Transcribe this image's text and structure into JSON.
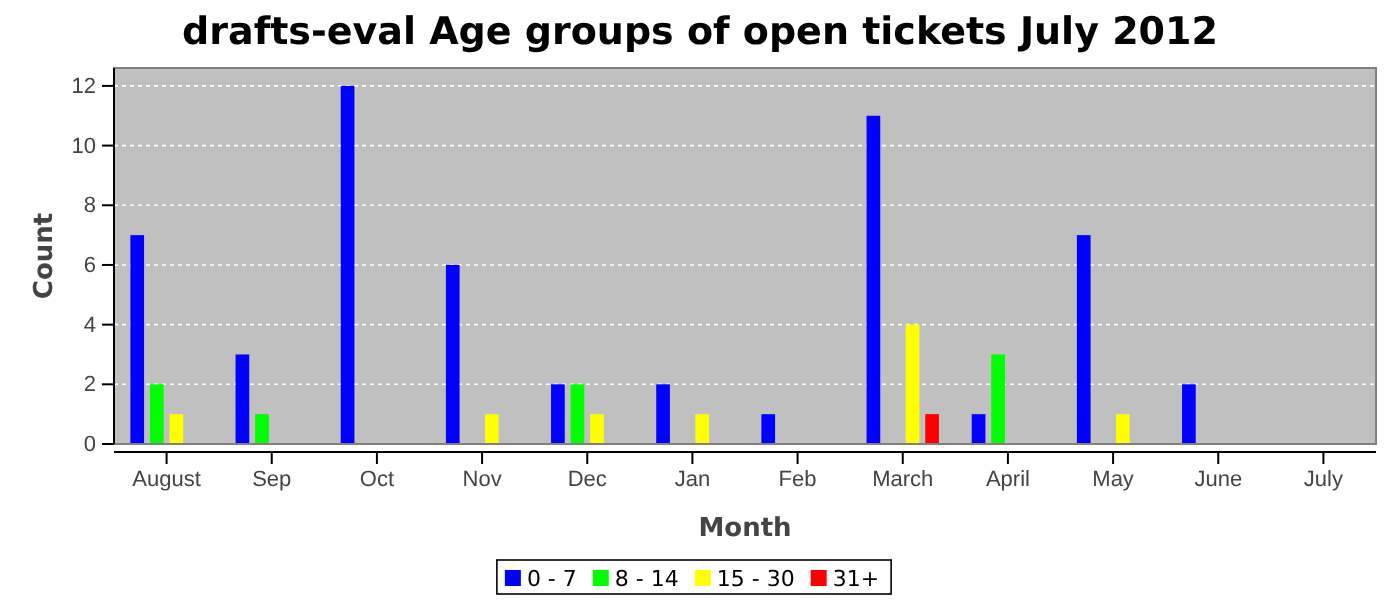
{
  "chart_data": {
    "type": "bar",
    "title": "drafts-eval Age groups of open tickets July 2012",
    "xlabel": "Month",
    "ylabel": "Count",
    "categories": [
      "August",
      "Sep",
      "Oct",
      "Nov",
      "Dec",
      "Jan",
      "Feb",
      "March",
      "April",
      "May",
      "June",
      "July"
    ],
    "series": [
      {
        "name": "0 - 7",
        "color": "#0000ff",
        "values": [
          7,
          3,
          12,
          6,
          2,
          2,
          1,
          11,
          1,
          7,
          2,
          0
        ]
      },
      {
        "name": "8 - 14",
        "color": "#00ff00",
        "values": [
          2,
          1,
          0,
          0,
          2,
          0,
          0,
          0,
          3,
          0,
          0,
          0
        ]
      },
      {
        "name": "15 - 30",
        "color": "#ffff00",
        "values": [
          1,
          0,
          0,
          1,
          1,
          1,
          0,
          4,
          0,
          1,
          0,
          0
        ]
      },
      {
        "name": "31+",
        "color": "#ff0000",
        "values": [
          0,
          0,
          0,
          0,
          0,
          0,
          0,
          1,
          0,
          0,
          0,
          0
        ]
      }
    ],
    "ylim": [
      0,
      12.6
    ],
    "yticks": [
      0,
      2,
      4,
      6,
      8,
      10,
      12
    ],
    "grid": "y",
    "legend": "bottom"
  }
}
